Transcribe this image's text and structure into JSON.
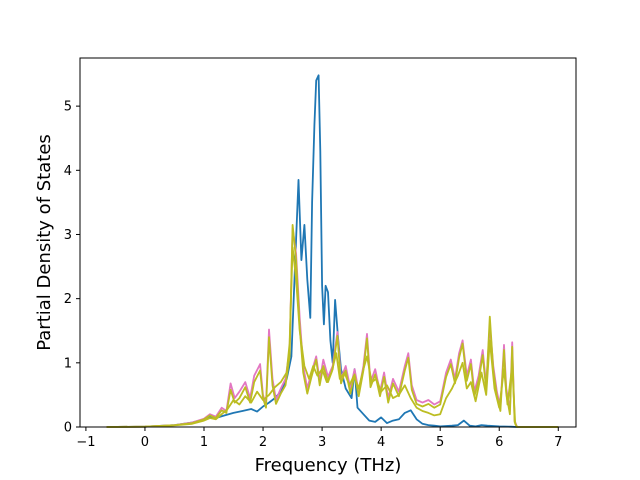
{
  "chart_data": {
    "type": "line",
    "title": "",
    "xlabel": "Frequency (THz)",
    "ylabel": "Partial Density of States",
    "xlim": [
      -1.1,
      7.3
    ],
    "ylim": [
      0,
      5.75
    ],
    "xticks": [
      -1,
      0,
      1,
      2,
      3,
      4,
      5,
      6,
      7
    ],
    "yticks": [
      0,
      1,
      2,
      3,
      4,
      5
    ],
    "grid": false,
    "legend": "none",
    "series": [
      {
        "color": "#1f77b4",
        "points": [
          [
            -0.65,
            0
          ],
          [
            0,
            0.005
          ],
          [
            0.5,
            0.03
          ],
          [
            0.8,
            0.07
          ],
          [
            1.0,
            0.12
          ],
          [
            1.1,
            0.16
          ],
          [
            1.2,
            0.14
          ],
          [
            1.35,
            0.18
          ],
          [
            1.5,
            0.22
          ],
          [
            1.65,
            0.25
          ],
          [
            1.8,
            0.28
          ],
          [
            1.9,
            0.24
          ],
          [
            2.0,
            0.32
          ],
          [
            2.1,
            0.38
          ],
          [
            2.2,
            0.45
          ],
          [
            2.3,
            0.55
          ],
          [
            2.4,
            0.75
          ],
          [
            2.48,
            1.1
          ],
          [
            2.55,
            2.7
          ],
          [
            2.6,
            3.85
          ],
          [
            2.65,
            2.6
          ],
          [
            2.7,
            3.15
          ],
          [
            2.75,
            2.3
          ],
          [
            2.8,
            1.7
          ],
          [
            2.83,
            3.5
          ],
          [
            2.87,
            4.7
          ],
          [
            2.9,
            5.4
          ],
          [
            2.94,
            5.48
          ],
          [
            2.97,
            4.3
          ],
          [
            3.0,
            2.2
          ],
          [
            3.03,
            1.6
          ],
          [
            3.06,
            2.2
          ],
          [
            3.1,
            2.1
          ],
          [
            3.14,
            1.35
          ],
          [
            3.18,
            1.0
          ],
          [
            3.22,
            1.98
          ],
          [
            3.27,
            1.4
          ],
          [
            3.32,
            0.9
          ],
          [
            3.4,
            0.6
          ],
          [
            3.5,
            0.45
          ],
          [
            3.55,
            0.9
          ],
          [
            3.6,
            0.3
          ],
          [
            3.7,
            0.2
          ],
          [
            3.8,
            0.1
          ],
          [
            3.9,
            0.08
          ],
          [
            4.0,
            0.15
          ],
          [
            4.1,
            0.06
          ],
          [
            4.2,
            0.1
          ],
          [
            4.3,
            0.12
          ],
          [
            4.4,
            0.22
          ],
          [
            4.5,
            0.26
          ],
          [
            4.6,
            0.12
          ],
          [
            4.7,
            0.05
          ],
          [
            4.8,
            0.03
          ],
          [
            4.9,
            0.02
          ],
          [
            5.0,
            0.01
          ],
          [
            5.2,
            0.02
          ],
          [
            5.3,
            0.03
          ],
          [
            5.4,
            0.1
          ],
          [
            5.5,
            0.02
          ],
          [
            5.6,
            0.01
          ],
          [
            5.7,
            0.03
          ],
          [
            5.8,
            0.02
          ],
          [
            6.0,
            0.01
          ],
          [
            6.2,
            0.005
          ],
          [
            6.3,
            0
          ],
          [
            7.0,
            0
          ]
        ]
      },
      {
        "color": "#e377c2",
        "points": [
          [
            -0.65,
            0
          ],
          [
            0,
            0.005
          ],
          [
            0.5,
            0.03
          ],
          [
            0.8,
            0.07
          ],
          [
            1.0,
            0.13
          ],
          [
            1.1,
            0.2
          ],
          [
            1.2,
            0.16
          ],
          [
            1.3,
            0.3
          ],
          [
            1.38,
            0.25
          ],
          [
            1.45,
            0.68
          ],
          [
            1.52,
            0.45
          ],
          [
            1.6,
            0.55
          ],
          [
            1.7,
            0.7
          ],
          [
            1.78,
            0.45
          ],
          [
            1.85,
            0.8
          ],
          [
            1.95,
            0.98
          ],
          [
            2.0,
            0.5
          ],
          [
            2.05,
            0.35
          ],
          [
            2.1,
            1.52
          ],
          [
            2.16,
            0.75
          ],
          [
            2.22,
            0.42
          ],
          [
            2.3,
            0.6
          ],
          [
            2.38,
            0.75
          ],
          [
            2.45,
            1.2
          ],
          [
            2.5,
            3.1
          ],
          [
            2.56,
            2.7
          ],
          [
            2.62,
            1.7
          ],
          [
            2.68,
            0.95
          ],
          [
            2.75,
            0.6
          ],
          [
            2.82,
            0.85
          ],
          [
            2.9,
            1.1
          ],
          [
            2.96,
            0.72
          ],
          [
            3.02,
            1.05
          ],
          [
            3.1,
            0.78
          ],
          [
            3.18,
            0.95
          ],
          [
            3.26,
            1.48
          ],
          [
            3.32,
            0.75
          ],
          [
            3.4,
            0.95
          ],
          [
            3.48,
            0.6
          ],
          [
            3.55,
            0.9
          ],
          [
            3.62,
            0.55
          ],
          [
            3.7,
            0.95
          ],
          [
            3.76,
            1.45
          ],
          [
            3.82,
            0.7
          ],
          [
            3.9,
            0.9
          ],
          [
            3.98,
            0.55
          ],
          [
            4.05,
            0.85
          ],
          [
            4.12,
            0.45
          ],
          [
            4.2,
            0.75
          ],
          [
            4.3,
            0.55
          ],
          [
            4.4,
            0.95
          ],
          [
            4.46,
            1.15
          ],
          [
            4.52,
            0.65
          ],
          [
            4.6,
            0.42
          ],
          [
            4.7,
            0.38
          ],
          [
            4.8,
            0.42
          ],
          [
            4.9,
            0.35
          ],
          [
            5.0,
            0.4
          ],
          [
            5.1,
            0.85
          ],
          [
            5.18,
            1.05
          ],
          [
            5.25,
            0.75
          ],
          [
            5.32,
            1.15
          ],
          [
            5.38,
            1.35
          ],
          [
            5.45,
            0.8
          ],
          [
            5.52,
            1.05
          ],
          [
            5.58,
            0.55
          ],
          [
            5.65,
            0.8
          ],
          [
            5.72,
            1.2
          ],
          [
            5.78,
            0.65
          ],
          [
            5.84,
            1.58
          ],
          [
            5.9,
            0.95
          ],
          [
            5.96,
            0.55
          ],
          [
            6.02,
            0.3
          ],
          [
            6.08,
            1.28
          ],
          [
            6.12,
            0.6
          ],
          [
            6.18,
            0.25
          ],
          [
            6.22,
            1.32
          ],
          [
            6.26,
            0.1
          ],
          [
            6.3,
            0
          ],
          [
            7.0,
            0
          ]
        ]
      },
      {
        "color": "#bcbd22",
        "points": [
          [
            -0.65,
            0
          ],
          [
            0,
            0.005
          ],
          [
            0.5,
            0.03
          ],
          [
            0.8,
            0.06
          ],
          [
            1.0,
            0.12
          ],
          [
            1.1,
            0.18
          ],
          [
            1.2,
            0.14
          ],
          [
            1.3,
            0.26
          ],
          [
            1.38,
            0.22
          ],
          [
            1.45,
            0.58
          ],
          [
            1.52,
            0.38
          ],
          [
            1.6,
            0.45
          ],
          [
            1.7,
            0.62
          ],
          [
            1.78,
            0.38
          ],
          [
            1.85,
            0.7
          ],
          [
            1.95,
            0.88
          ],
          [
            2.0,
            0.45
          ],
          [
            2.05,
            0.3
          ],
          [
            2.1,
            1.4
          ],
          [
            2.16,
            0.65
          ],
          [
            2.22,
            0.36
          ],
          [
            2.3,
            0.52
          ],
          [
            2.38,
            0.65
          ],
          [
            2.45,
            1.1
          ],
          [
            2.5,
            3.15
          ],
          [
            2.56,
            2.6
          ],
          [
            2.62,
            1.55
          ],
          [
            2.68,
            0.85
          ],
          [
            2.75,
            0.52
          ],
          [
            2.82,
            0.78
          ],
          [
            2.9,
            1.05
          ],
          [
            2.96,
            0.65
          ],
          [
            3.02,
            0.95
          ],
          [
            3.1,
            0.7
          ],
          [
            3.18,
            0.9
          ],
          [
            3.26,
            1.42
          ],
          [
            3.32,
            0.68
          ],
          [
            3.4,
            0.88
          ],
          [
            3.48,
            0.52
          ],
          [
            3.55,
            0.82
          ],
          [
            3.62,
            0.48
          ],
          [
            3.7,
            0.88
          ],
          [
            3.76,
            1.38
          ],
          [
            3.82,
            0.62
          ],
          [
            3.9,
            0.82
          ],
          [
            3.98,
            0.48
          ],
          [
            4.05,
            0.78
          ],
          [
            4.12,
            0.38
          ],
          [
            4.2,
            0.68
          ],
          [
            4.3,
            0.48
          ],
          [
            4.4,
            0.88
          ],
          [
            4.46,
            1.08
          ],
          [
            4.52,
            0.58
          ],
          [
            4.6,
            0.36
          ],
          [
            4.7,
            0.32
          ],
          [
            4.8,
            0.36
          ],
          [
            4.9,
            0.3
          ],
          [
            5.0,
            0.35
          ],
          [
            5.1,
            0.78
          ],
          [
            5.18,
            0.98
          ],
          [
            5.25,
            0.68
          ],
          [
            5.32,
            1.08
          ],
          [
            5.38,
            1.3
          ],
          [
            5.45,
            0.72
          ],
          [
            5.52,
            0.98
          ],
          [
            5.58,
            0.48
          ],
          [
            5.65,
            0.72
          ],
          [
            5.72,
            1.12
          ],
          [
            5.78,
            0.58
          ],
          [
            5.84,
            1.72
          ],
          [
            5.9,
            0.88
          ],
          [
            5.96,
            0.48
          ],
          [
            6.02,
            0.25
          ],
          [
            6.08,
            1.2
          ],
          [
            6.12,
            0.52
          ],
          [
            6.18,
            0.2
          ],
          [
            6.22,
            1.25
          ],
          [
            6.26,
            0.08
          ],
          [
            6.3,
            0
          ],
          [
            7.0,
            0
          ]
        ]
      },
      {
        "color": "#bcbd22",
        "points": [
          [
            -0.65,
            0
          ],
          [
            0,
            0.005
          ],
          [
            0.5,
            0.025
          ],
          [
            0.8,
            0.05
          ],
          [
            1.0,
            0.1
          ],
          [
            1.1,
            0.14
          ],
          [
            1.2,
            0.12
          ],
          [
            1.3,
            0.2
          ],
          [
            1.4,
            0.28
          ],
          [
            1.5,
            0.42
          ],
          [
            1.6,
            0.35
          ],
          [
            1.7,
            0.48
          ],
          [
            1.8,
            0.38
          ],
          [
            1.9,
            0.55
          ],
          [
            2.0,
            0.42
          ],
          [
            2.1,
            0.5
          ],
          [
            2.2,
            0.62
          ],
          [
            2.3,
            0.7
          ],
          [
            2.4,
            0.85
          ],
          [
            2.45,
            1.3
          ],
          [
            2.5,
            2.8
          ],
          [
            2.56,
            2.3
          ],
          [
            2.62,
            1.5
          ],
          [
            2.7,
            0.95
          ],
          [
            2.78,
            0.75
          ],
          [
            2.85,
            0.95
          ],
          [
            2.92,
            0.8
          ],
          [
            3.0,
            0.9
          ],
          [
            3.08,
            0.7
          ],
          [
            3.16,
            0.85
          ],
          [
            3.24,
            1.15
          ],
          [
            3.3,
            0.75
          ],
          [
            3.38,
            0.85
          ],
          [
            3.46,
            0.65
          ],
          [
            3.54,
            0.8
          ],
          [
            3.62,
            0.6
          ],
          [
            3.7,
            0.9
          ],
          [
            3.76,
            1.1
          ],
          [
            3.84,
            0.7
          ],
          [
            3.92,
            0.75
          ],
          [
            4.0,
            0.55
          ],
          [
            4.1,
            0.65
          ],
          [
            4.2,
            0.45
          ],
          [
            4.3,
            0.5
          ],
          [
            4.4,
            0.65
          ],
          [
            4.5,
            0.45
          ],
          [
            4.6,
            0.3
          ],
          [
            4.7,
            0.25
          ],
          [
            4.8,
            0.22
          ],
          [
            4.9,
            0.18
          ],
          [
            5.0,
            0.2
          ],
          [
            5.1,
            0.45
          ],
          [
            5.2,
            0.6
          ],
          [
            5.3,
            0.8
          ],
          [
            5.38,
            1.0
          ],
          [
            5.45,
            0.6
          ],
          [
            5.52,
            0.7
          ],
          [
            5.6,
            0.4
          ],
          [
            5.7,
            0.85
          ],
          [
            5.78,
            0.5
          ],
          [
            5.84,
            1.35
          ],
          [
            5.92,
            0.6
          ],
          [
            6.0,
            0.3
          ],
          [
            6.08,
            0.9
          ],
          [
            6.14,
            0.35
          ],
          [
            6.22,
            0.95
          ],
          [
            6.27,
            0.05
          ],
          [
            6.3,
            0
          ],
          [
            7.0,
            0
          ]
        ]
      }
    ]
  }
}
